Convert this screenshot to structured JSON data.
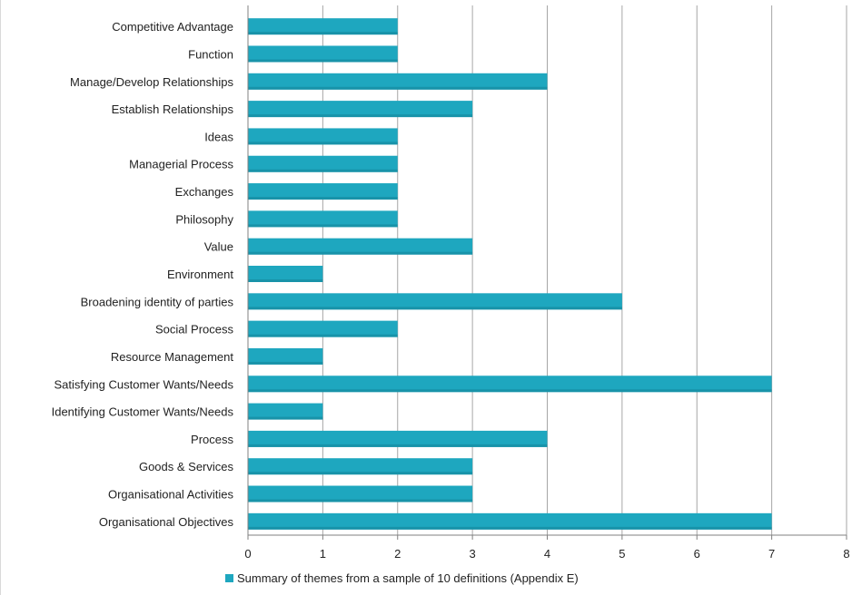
{
  "chart_data": {
    "type": "bar",
    "orientation": "horizontal",
    "categories": [
      "Competitive Advantage",
      "Function",
      "Manage/Develop Relationships",
      "Establish Relationships",
      "Ideas",
      "Managerial Process",
      "Exchanges",
      "Philosophy",
      "Value",
      "Environment",
      "Broadening identity of parties",
      "Social Process",
      "Resource Management",
      "Satisfying Customer Wants/Needs",
      "Identifying Customer Wants/Needs",
      "Process",
      "Goods & Services",
      "Organisational Activities",
      "Organisational Objectives"
    ],
    "series": [
      {
        "name": "Summary of themes from a sample of 10 definitions (Appendix E)",
        "values": [
          2,
          2,
          4,
          3,
          2,
          2,
          2,
          2,
          3,
          1,
          5,
          2,
          1,
          7,
          1,
          4,
          3,
          3,
          7
        ]
      }
    ],
    "xlim": [
      0,
      8
    ],
    "x_ticks": [
      "0",
      "1",
      "2",
      "3",
      "4",
      "5",
      "6",
      "7",
      "8"
    ],
    "grid": "vertical",
    "legend_position": "bottom",
    "bar_color": "#1ea7bf",
    "title": "",
    "xlabel": "",
    "ylabel": ""
  }
}
